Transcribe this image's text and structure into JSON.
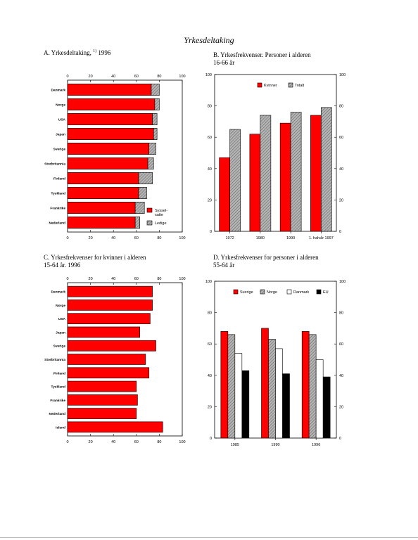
{
  "page": {
    "title": "Yrkesdeltaking"
  },
  "colors": {
    "red": "#ff0000",
    "hatch": "#b4b4b4",
    "white": "#ffffff",
    "black": "#000000"
  },
  "panels": {
    "A": {
      "title": "A.  Yrkesdeltaking,",
      "sup": "1)",
      "title_suffix": " 1996"
    },
    "B": {
      "title": "B. Yrkesfrekvenser. Personer i alderen\n   16-66 år"
    },
    "C": {
      "title": "C.  Yrkesfrekvenser for kvinner i alderen\n      15-64 år. 1996"
    },
    "D": {
      "title": "D.  Yrkesfrekvenser for personer i alderen\n      55-64 år"
    }
  },
  "chart_data": [
    {
      "id": "A",
      "type": "bar",
      "orientation": "horizontal",
      "stacked": true,
      "categories": [
        "Danmark",
        "Norge",
        "USA",
        "Japan",
        "Sverige",
        "Storbritannia",
        "Finland",
        "Tyskland",
        "Frankrike",
        "Nederland"
      ],
      "series": [
        {
          "name": "Syssel-\nsatte",
          "values": [
            73,
            76,
            74,
            75,
            71,
            70,
            62,
            62,
            59,
            59
          ],
          "color": "#ff0000"
        },
        {
          "name": "Ledige",
          "values": [
            7,
            4,
            4,
            3,
            6,
            5,
            12,
            7,
            8,
            4
          ],
          "color": "#b4b4b4",
          "pattern": "hatch"
        }
      ],
      "xlim": [
        0,
        100
      ],
      "xticks": [
        0,
        20,
        40,
        60,
        80,
        100
      ],
      "grid": false,
      "legend": "bottom-right"
    },
    {
      "id": "B",
      "type": "bar",
      "categories": [
        "1972",
        "1980",
        "1990",
        "1. halvår 1997"
      ],
      "series": [
        {
          "name": "Kvinner",
          "values": [
            47,
            62,
            69,
            74
          ],
          "color": "#ff0000"
        },
        {
          "name": "Totalt",
          "values": [
            65,
            74,
            76,
            79
          ],
          "color": "#b4b4b4",
          "pattern": "hatch"
        }
      ],
      "ylim": [
        0,
        100
      ],
      "yticks": [
        0,
        20,
        40,
        60,
        80,
        100
      ],
      "grid": false,
      "legend": "top"
    },
    {
      "id": "C",
      "type": "bar",
      "orientation": "horizontal",
      "categories": [
        "Danmark",
        "Norge",
        "USA",
        "Japan",
        "Sverige",
        "Storbritannia",
        "Finland",
        "Tyskland",
        "Frankrike",
        "Nederland",
        "Island"
      ],
      "values": [
        74,
        74,
        72,
        63,
        77,
        68,
        71,
        60,
        61,
        60,
        83
      ],
      "color": "#ff0000",
      "xlim": [
        0,
        100
      ],
      "xticks": [
        0,
        20,
        40,
        60,
        80,
        100
      ],
      "grid": false
    },
    {
      "id": "D",
      "type": "bar",
      "categories": [
        "1985",
        "1990",
        "1996"
      ],
      "series": [
        {
          "name": "Sverige",
          "values": [
            68,
            70,
            68
          ],
          "color": "#ff0000"
        },
        {
          "name": "Norge",
          "values": [
            66,
            63,
            66
          ],
          "color": "#b4b4b4",
          "pattern": "hatch"
        },
        {
          "name": "Danmark",
          "values": [
            54,
            57,
            50
          ],
          "color": "#ffffff"
        },
        {
          "name": "EU",
          "values": [
            43,
            41,
            39
          ],
          "color": "#000000"
        }
      ],
      "ylim": [
        0,
        100
      ],
      "yticks": [
        0,
        20,
        40,
        60,
        80,
        100
      ],
      "grid": false,
      "legend": "top"
    }
  ]
}
